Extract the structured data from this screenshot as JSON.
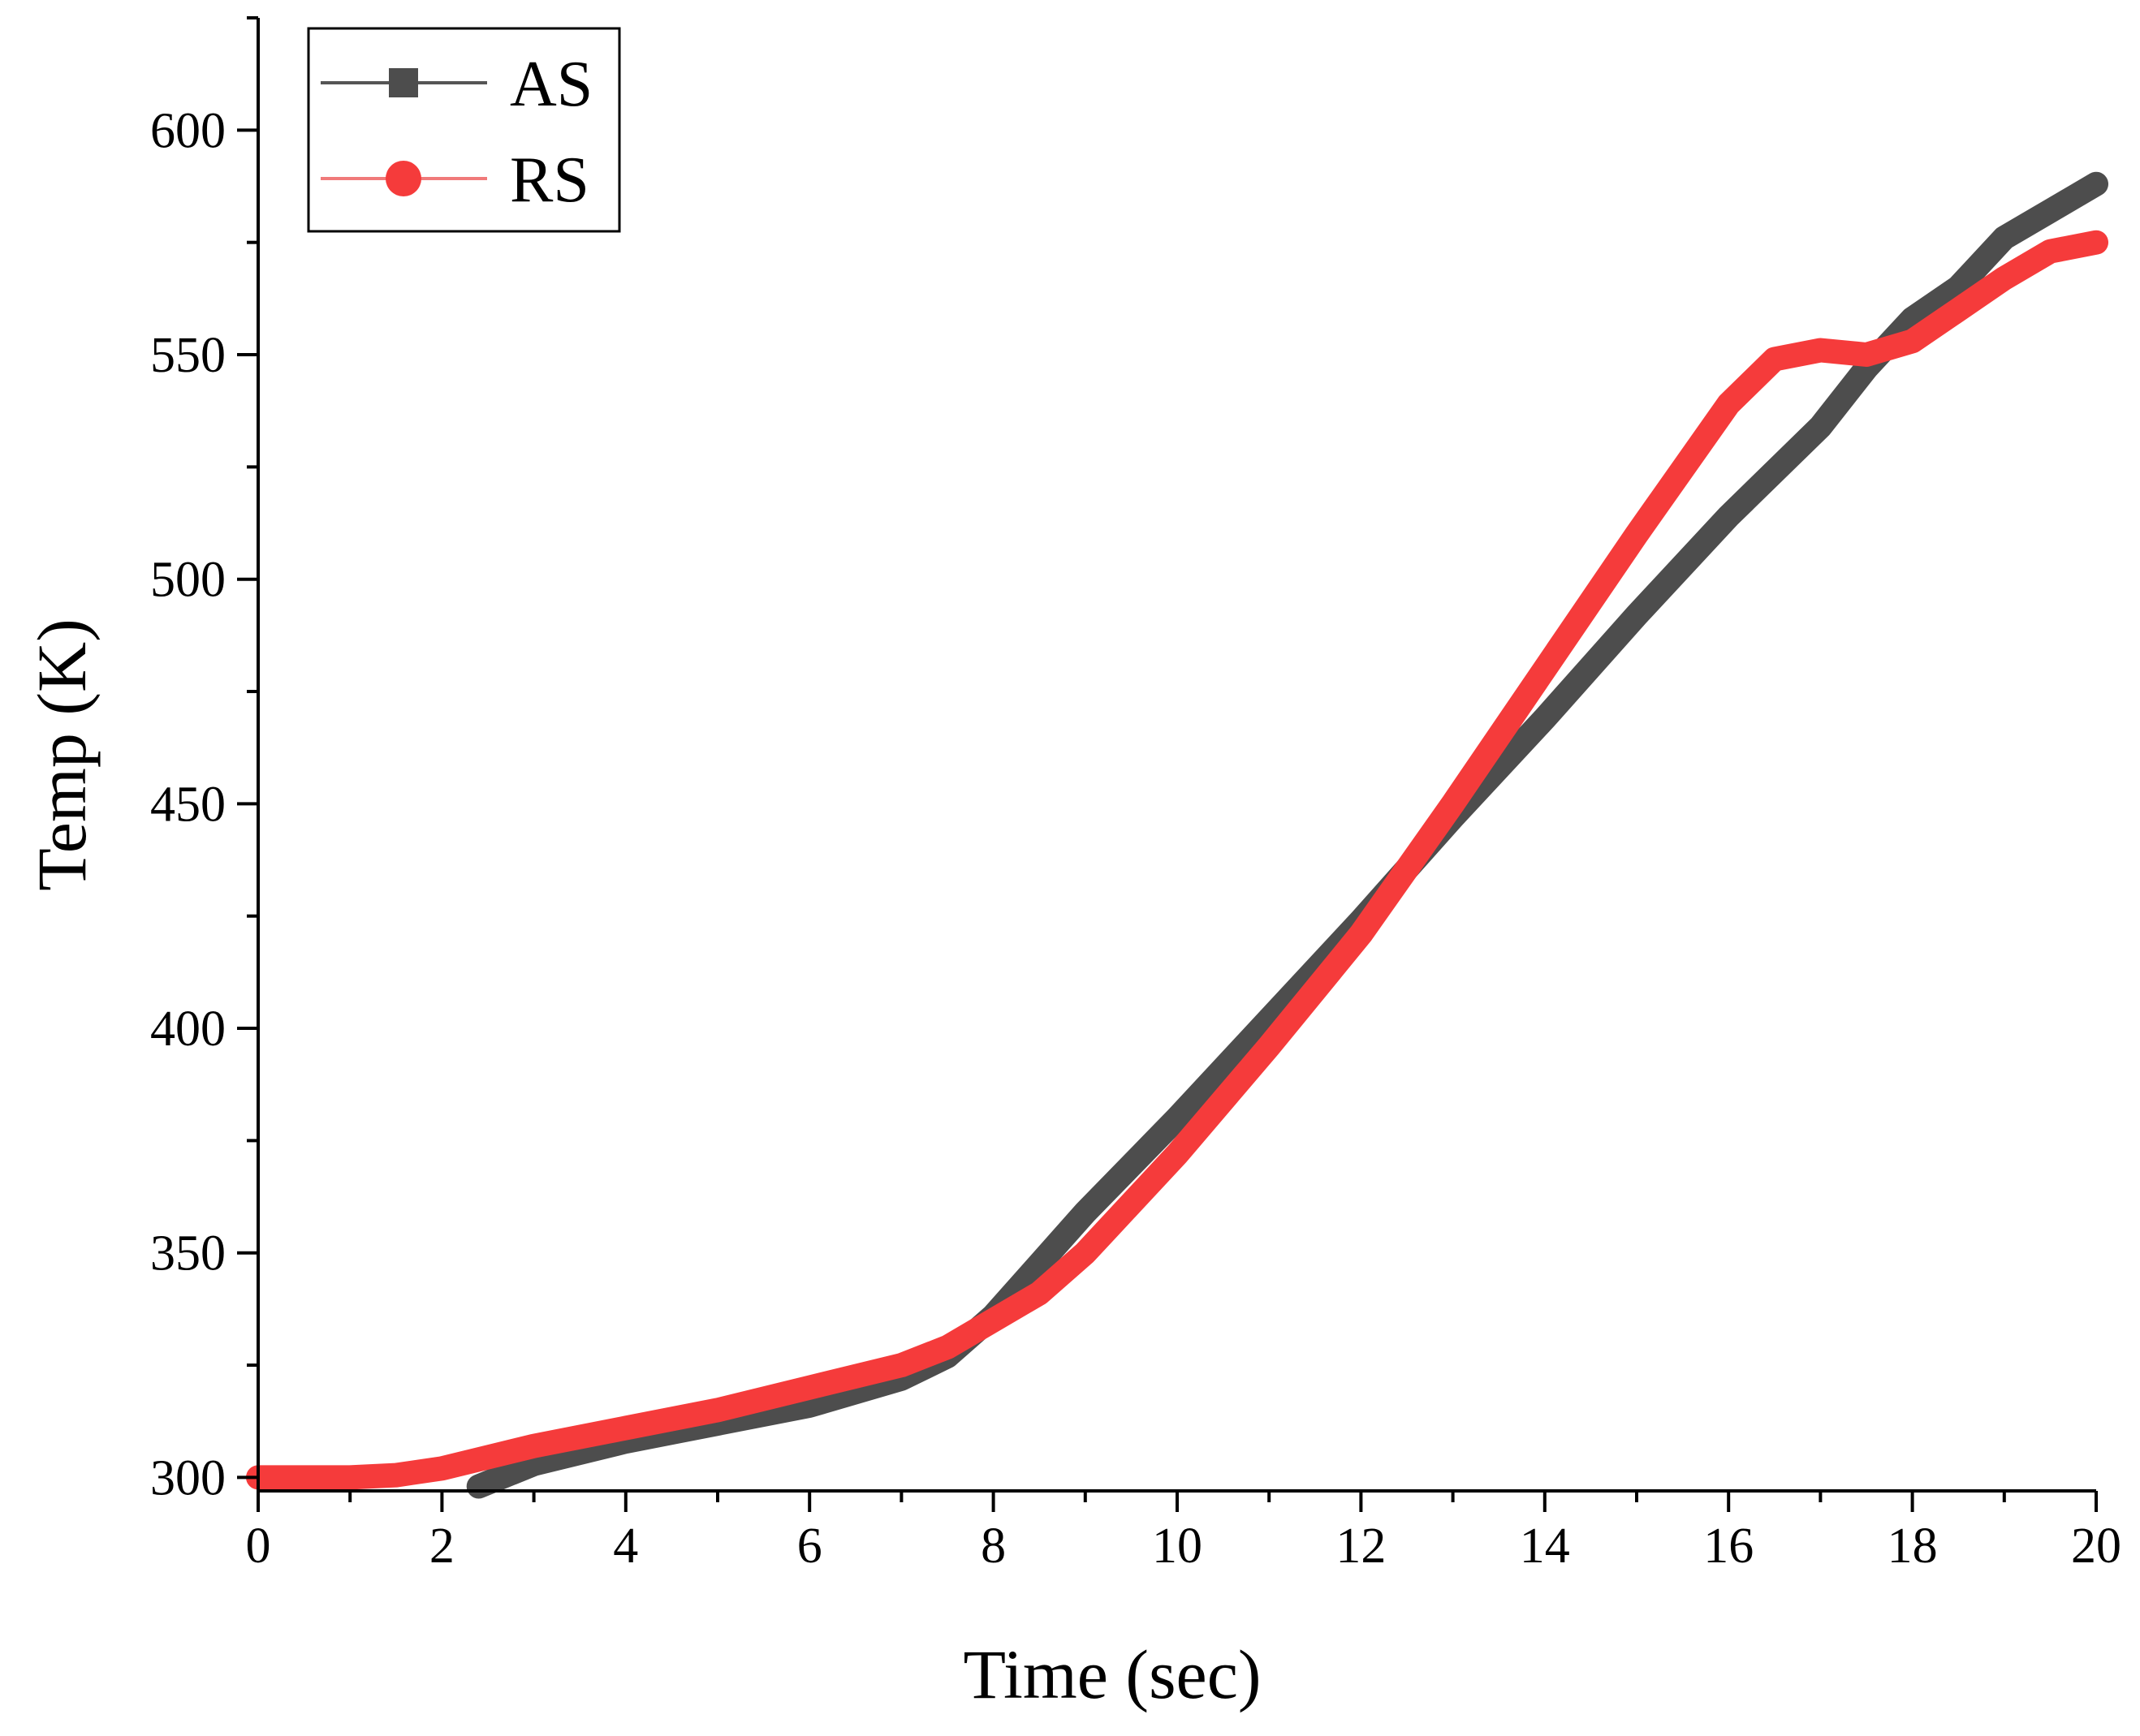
{
  "chart_data": {
    "type": "line",
    "title": "",
    "xlabel": "Time (sec)",
    "ylabel": "Temp (K)",
    "xlim": [
      0,
      20
    ],
    "ylim": [
      297,
      625
    ],
    "x_ticks": [
      0,
      2,
      4,
      6,
      8,
      10,
      12,
      14,
      16,
      18,
      20
    ],
    "y_ticks": [
      300,
      350,
      400,
      450,
      500,
      550,
      600
    ],
    "grid": false,
    "legend_position": "top-left",
    "series": [
      {
        "name": "AS",
        "color": "#4d4d4d",
        "marker": "square",
        "x": [
          2.4,
          3,
          4,
          5,
          6,
          7,
          7.5,
          8,
          9,
          10,
          11,
          12,
          13,
          14,
          15,
          16,
          17,
          17.5,
          18,
          18.5,
          19,
          19.5,
          20
        ],
        "y": [
          298,
          303,
          308,
          312,
          316,
          322,
          327,
          336,
          359,
          380,
          402,
          424,
          447,
          469,
          492,
          514,
          534,
          547,
          558,
          565,
          576,
          582,
          588
        ]
      },
      {
        "name": "RS",
        "color": "#f53b3b",
        "marker": "circle",
        "x": [
          0,
          1,
          1.5,
          2,
          3,
          4,
          5,
          6,
          7,
          7.5,
          8,
          8.5,
          9,
          10,
          11,
          12,
          13,
          14,
          15,
          16,
          16.5,
          17,
          17.5,
          18,
          18.5,
          19,
          19.5,
          20
        ],
        "y": [
          300,
          300,
          300.5,
          302,
          307,
          311,
          315,
          320,
          325,
          329,
          335,
          341,
          350,
          372,
          396,
          421,
          450,
          480,
          510,
          539,
          549,
          551,
          550,
          553,
          560,
          567,
          573,
          575
        ]
      }
    ]
  }
}
